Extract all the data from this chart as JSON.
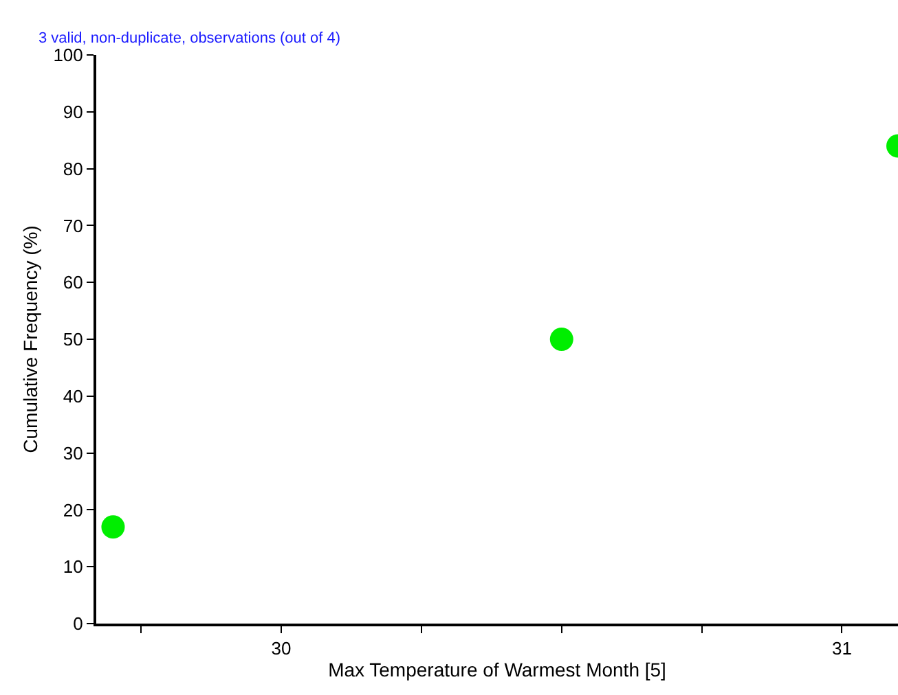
{
  "chart_data": {
    "type": "scatter",
    "xlabel": "Max Temperature of Warmest Month [5]",
    "ylabel": "Cumulative Frequency (%)",
    "annotations": [
      "3 valid, non-duplicate, observations (out of 4)"
    ],
    "x": [
      29.7,
      30.5,
      31.1
    ],
    "series": [
      {
        "color": "#00ee00",
        "values": [
          17,
          50,
          84
        ]
      }
    ],
    "xlim": [
      29.67,
      31.1
    ],
    "xticks": [
      {
        "value": 29.75,
        "label": null
      },
      30,
      {
        "value": 30.25,
        "label": null
      },
      {
        "value": 30.5,
        "label": null
      },
      {
        "value": 30.75,
        "label": null
      },
      31
    ],
    "ylim": [
      0,
      100
    ],
    "yticks": [
      0,
      10,
      20,
      30,
      40,
      50,
      60,
      70,
      80,
      90,
      100
    ],
    "grid": false,
    "marker": "circle"
  }
}
